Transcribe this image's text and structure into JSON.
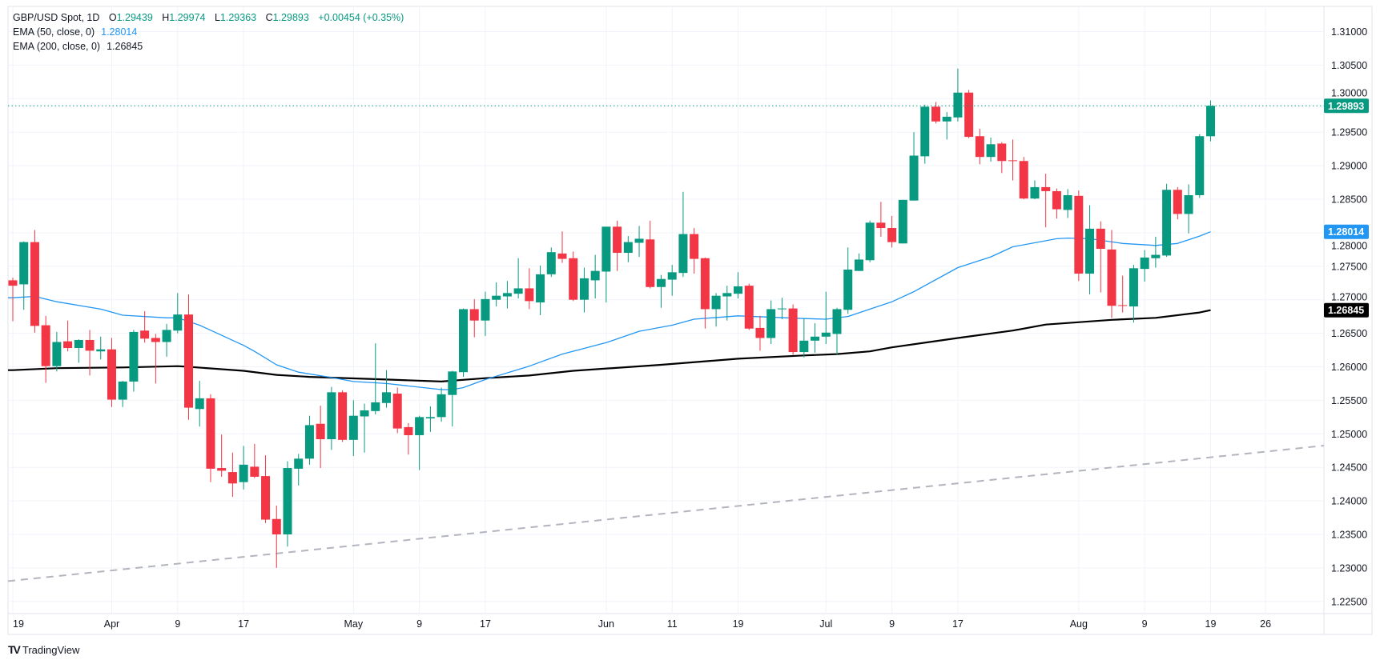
{
  "legend": {
    "symbol": "GBP/USD Spot, 1D",
    "open_label": "O",
    "open": "1.29439",
    "high_label": "H",
    "high": "1.29974",
    "low_label": "L",
    "low": "1.29363",
    "close_label": "C",
    "close": "1.29893",
    "change": "+0.00454 (+0.35%)",
    "ema50_label": "EMA (50, close, 0)",
    "ema50_value": "1.28014",
    "ema200_label": "EMA (200, close, 0)",
    "ema200_value": "1.26845"
  },
  "branding": {
    "logo_text": "TradingView"
  },
  "colors": {
    "up": "#089981",
    "down": "#f23645",
    "ema50": "#2196f3",
    "ema200": "#000000",
    "trendline": "#b2b5be",
    "grid": "#f0f3fa"
  },
  "chart_data": {
    "type": "candlestick",
    "title": "GBP/USD Spot, 1D",
    "ylim": [
      1.2215,
      1.3125
    ],
    "grid": true,
    "y_ticks": [
      "1.31000",
      "1.30500",
      "1.30000",
      "1.29500",
      "1.29000",
      "1.28500",
      "1.28000",
      "1.27500",
      "1.27000",
      "1.26500",
      "1.26000",
      "1.25500",
      "1.25000",
      "1.24500",
      "1.24000",
      "1.23500",
      "1.23000",
      "1.22500"
    ],
    "x_ticks": [
      {
        "label": "19",
        "date": "Mar 19"
      },
      {
        "label": "Apr",
        "date": "Apr 1"
      },
      {
        "label": "9",
        "date": "Apr 9"
      },
      {
        "label": "17",
        "date": "Apr 17"
      },
      {
        "label": "May",
        "date": "May 1"
      },
      {
        "label": "9",
        "date": "May 9"
      },
      {
        "label": "17",
        "date": "May 17"
      },
      {
        "label": "Jun",
        "date": "Jun 3"
      },
      {
        "label": "11",
        "date": "Jun 11"
      },
      {
        "label": "19",
        "date": "Jun 19"
      },
      {
        "label": "Jul",
        "date": "Jul 1"
      },
      {
        "label": "9",
        "date": "Jul 9"
      },
      {
        "label": "17",
        "date": "Jul 17"
      },
      {
        "label": "Aug",
        "date": "Aug 1"
      },
      {
        "label": "9",
        "date": "Aug 9"
      },
      {
        "label": "19",
        "date": "Aug 19"
      },
      {
        "label": "26",
        "date": "Aug 26"
      }
    ],
    "candles_fields": [
      "date",
      "open",
      "high",
      "low",
      "close"
    ],
    "candles": [
      [
        "Mar 19",
        1.2729,
        1.2733,
        1.2668,
        1.2721
      ],
      [
        "Mar 20",
        1.2723,
        1.2787,
        1.2685,
        1.2786
      ],
      [
        "Mar 21",
        1.2786,
        1.2804,
        1.2651,
        1.2661
      ],
      [
        "Mar 22",
        1.2662,
        1.2676,
        1.2576,
        1.2601
      ],
      [
        "Mar 25",
        1.2601,
        1.2652,
        1.2593,
        1.2637
      ],
      [
        "Mar 26",
        1.2638,
        1.2669,
        1.2623,
        1.2628
      ],
      [
        "Mar 27",
        1.2628,
        1.2641,
        1.2606,
        1.264
      ],
      [
        "Mar 28",
        1.264,
        1.2655,
        1.2587,
        1.2624
      ],
      [
        "Mar 29",
        1.2623,
        1.2645,
        1.2611,
        1.2626
      ],
      [
        "Apr 1",
        1.2626,
        1.2643,
        1.254,
        1.2551
      ],
      [
        "Apr 2",
        1.2551,
        1.2579,
        1.254,
        1.2578
      ],
      [
        "Apr 3",
        1.2578,
        1.2655,
        1.2563,
        1.2652
      ],
      [
        "Apr 4",
        1.2654,
        1.2683,
        1.2636,
        1.2642
      ],
      [
        "Apr 5",
        1.2643,
        1.2649,
        1.2575,
        1.2637
      ],
      [
        "Apr 8",
        1.2637,
        1.2664,
        1.2615,
        1.2655
      ],
      [
        "Apr 9",
        1.2654,
        1.271,
        1.265,
        1.2678
      ],
      [
        "Apr 10",
        1.2678,
        1.2708,
        1.2521,
        1.2539
      ],
      [
        "Apr 11",
        1.2537,
        1.2579,
        1.2511,
        1.2553
      ],
      [
        "Apr 12",
        1.2553,
        1.2559,
        1.2428,
        1.2448
      ],
      [
        "Apr 15",
        1.2449,
        1.2499,
        1.2436,
        1.2445
      ],
      [
        "Apr 16",
        1.2443,
        1.2472,
        1.2406,
        1.2426
      ],
      [
        "Apr 17",
        1.2428,
        1.2482,
        1.2417,
        1.2454
      ],
      [
        "Apr 18",
        1.2451,
        1.2485,
        1.2434,
        1.2436
      ],
      [
        "Apr 19",
        1.2437,
        1.2468,
        1.2367,
        1.2372
      ],
      [
        "Apr 22",
        1.2373,
        1.2393,
        1.23,
        1.235
      ],
      [
        "Apr 23",
        1.235,
        1.2459,
        1.2332,
        1.2449
      ],
      [
        "Apr 24",
        1.2448,
        1.247,
        1.2423,
        1.2463
      ],
      [
        "Apr 25",
        1.2463,
        1.2527,
        1.2454,
        1.2513
      ],
      [
        "Apr 26",
        1.2515,
        1.2542,
        1.2449,
        1.2492
      ],
      [
        "Apr 29",
        1.2492,
        1.257,
        1.2476,
        1.2562
      ],
      [
        "Apr 30",
        1.2562,
        1.2565,
        1.2488,
        1.2491
      ],
      [
        "May 1",
        1.2491,
        1.255,
        1.2467,
        1.2527
      ],
      [
        "May 2",
        1.2526,
        1.2545,
        1.2472,
        1.2535
      ],
      [
        "May 3",
        1.2534,
        1.2635,
        1.2529,
        1.2547
      ],
      [
        "May 6",
        1.2546,
        1.2595,
        1.2539,
        1.2562
      ],
      [
        "May 7",
        1.256,
        1.2569,
        1.2501,
        1.2508
      ],
      [
        "May 8",
        1.251,
        1.2516,
        1.2469,
        1.2498
      ],
      [
        "May 9",
        1.2498,
        1.2527,
        1.2446,
        1.2525
      ],
      [
        "May 10",
        1.2523,
        1.2541,
        1.2503,
        1.2525
      ],
      [
        "May 13",
        1.2525,
        1.2569,
        1.2518,
        1.2559
      ],
      [
        "May 14",
        1.2558,
        1.2594,
        1.2511,
        1.2593
      ],
      [
        "May 15",
        1.2592,
        1.2687,
        1.2585,
        1.2686
      ],
      [
        "May 16",
        1.2686,
        1.2701,
        1.2644,
        1.2669
      ],
      [
        "May 17",
        1.2669,
        1.2712,
        1.2646,
        1.2701
      ],
      [
        "May 20",
        1.27,
        1.2726,
        1.269,
        1.2706
      ],
      [
        "May 21",
        1.2705,
        1.2728,
        1.2687,
        1.271
      ],
      [
        "May 22",
        1.2709,
        1.2762,
        1.2702,
        1.2717
      ],
      [
        "May 23",
        1.2717,
        1.2747,
        1.2686,
        1.2698
      ],
      [
        "May 24",
        1.2696,
        1.2751,
        1.2677,
        1.2738
      ],
      [
        "May 27",
        1.2738,
        1.2778,
        1.2734,
        1.2771
      ],
      [
        "May 28",
        1.2769,
        1.2802,
        1.2755,
        1.2761
      ],
      [
        "May 29",
        1.2762,
        1.2772,
        1.2698,
        1.27
      ],
      [
        "May 30",
        1.27,
        1.2748,
        1.2681,
        1.2732
      ],
      [
        "May 31",
        1.2729,
        1.2767,
        1.2702,
        1.2743
      ],
      [
        "Jun 3",
        1.2742,
        1.2809,
        1.2696,
        1.2809
      ],
      [
        "Jun 4",
        1.2809,
        1.2818,
        1.2743,
        1.277
      ],
      [
        "Jun 5",
        1.277,
        1.2795,
        1.2756,
        1.2786
      ],
      [
        "Jun 6",
        1.2785,
        1.281,
        1.2764,
        1.2791
      ],
      [
        "Jun 7",
        1.279,
        1.2818,
        1.2717,
        1.2719
      ],
      [
        "Jun 10",
        1.2719,
        1.2737,
        1.2688,
        1.2731
      ],
      [
        "Jun 11",
        1.273,
        1.2752,
        1.2706,
        1.2741
      ],
      [
        "Jun 12",
        1.274,
        1.2861,
        1.2734,
        1.2798
      ],
      [
        "Jun 13",
        1.2798,
        1.2807,
        1.2739,
        1.2761
      ],
      [
        "Jun 14",
        1.2762,
        1.2763,
        1.2657,
        1.2686
      ],
      [
        "Jun 17",
        1.2686,
        1.271,
        1.266,
        1.2706
      ],
      [
        "Jun 18",
        1.2705,
        1.2721,
        1.2669,
        1.271
      ],
      [
        "Jun 19",
        1.2709,
        1.2741,
        1.2702,
        1.272
      ],
      [
        "Jun 20",
        1.2721,
        1.2724,
        1.2655,
        1.2657
      ],
      [
        "Jun 21",
        1.2658,
        1.2676,
        1.2624,
        1.2643
      ],
      [
        "Jun 24",
        1.2643,
        1.2699,
        1.2634,
        1.2686
      ],
      [
        "Jun 25",
        1.2686,
        1.2703,
        1.2671,
        1.2687
      ],
      [
        "Jun 26",
        1.2687,
        1.2693,
        1.2618,
        1.2622
      ],
      [
        "Jun 27",
        1.2622,
        1.2672,
        1.2614,
        1.2639
      ],
      [
        "Jun 28",
        1.2639,
        1.2665,
        1.2621,
        1.2645
      ],
      [
        "Jul 1",
        1.2645,
        1.2712,
        1.2634,
        1.2651
      ],
      [
        "Jul 2",
        1.2649,
        1.2688,
        1.2618,
        1.2686
      ],
      [
        "Jul 3",
        1.2685,
        1.2778,
        1.2679,
        1.2745
      ],
      [
        "Jul 4",
        1.2743,
        1.2769,
        1.2743,
        1.276
      ],
      [
        "Jul 5",
        1.2759,
        1.2818,
        1.2756,
        1.2815
      ],
      [
        "Jul 8",
        1.2815,
        1.2846,
        1.2794,
        1.2807
      ],
      [
        "Jul 9",
        1.2807,
        1.2825,
        1.2778,
        1.2786
      ],
      [
        "Jul 10",
        1.2784,
        1.2849,
        1.2784,
        1.2849
      ],
      [
        "Jul 11",
        1.2848,
        1.295,
        1.2848,
        1.2915
      ],
      [
        "Jul 12",
        1.2914,
        1.2991,
        1.2903,
        1.2988
      ],
      [
        "Jul 15",
        1.2988,
        1.2995,
        1.2963,
        1.2966
      ],
      [
        "Jul 16",
        1.2966,
        1.298,
        1.2939,
        1.2973
      ],
      [
        "Jul 17",
        1.2972,
        1.3045,
        1.2966,
        1.3009
      ],
      [
        "Jul 18",
        1.3009,
        1.3013,
        1.2941,
        1.2943
      ],
      [
        "Jul 19",
        1.2944,
        1.2955,
        1.2902,
        1.2913
      ],
      [
        "Jul 22",
        1.2913,
        1.2942,
        1.2906,
        1.2932
      ],
      [
        "Jul 23",
        1.2933,
        1.2935,
        1.2889,
        1.2907
      ],
      [
        "Jul 24",
        1.2908,
        1.2939,
        1.2878,
        1.2907
      ],
      [
        "Jul 25",
        1.2907,
        1.2913,
        1.285,
        1.2851
      ],
      [
        "Jul 26",
        1.2851,
        1.2878,
        1.285,
        1.2868
      ],
      [
        "Jul 29",
        1.2868,
        1.2888,
        1.2808,
        1.2862
      ],
      [
        "Jul 30",
        1.2862,
        1.2866,
        1.2821,
        1.2835
      ],
      [
        "Jul 31",
        1.2834,
        1.2865,
        1.2822,
        1.2856
      ],
      [
        "Aug 1",
        1.2855,
        1.2863,
        1.2728,
        1.2739
      ],
      [
        "Aug 2",
        1.2739,
        1.2841,
        1.2708,
        1.2806
      ],
      [
        "Aug 5",
        1.2806,
        1.2817,
        1.2711,
        1.2776
      ],
      [
        "Aug 6",
        1.2775,
        1.2804,
        1.2673,
        1.2691
      ],
      [
        "Aug 7",
        1.2692,
        1.2736,
        1.2681,
        1.2691
      ],
      [
        "Aug 8",
        1.269,
        1.2752,
        1.2666,
        1.2747
      ],
      [
        "Aug 9",
        1.2746,
        1.2774,
        1.2727,
        1.2763
      ],
      [
        "Aug 12",
        1.2762,
        1.2794,
        1.2748,
        1.2767
      ],
      [
        "Aug 13",
        1.2766,
        1.2873,
        1.2764,
        1.2864
      ],
      [
        "Aug 14",
        1.2864,
        1.2868,
        1.282,
        1.2828
      ],
      [
        "Aug 15",
        1.2828,
        1.2872,
        1.2799,
        1.2856
      ],
      [
        "Aug 16",
        1.2856,
        1.2947,
        1.2852,
        1.2944
      ],
      [
        "Aug 19",
        1.29439,
        1.29974,
        1.29363,
        1.29893
      ]
    ],
    "ema50": [
      [
        "Mar 19",
        1.2703
      ],
      [
        "Mar 21",
        1.2705
      ],
      [
        "Mar 25",
        1.2697
      ],
      [
        "Mar 29",
        1.2686
      ],
      [
        "Apr 2",
        1.2677
      ],
      [
        "Apr 8",
        1.2673
      ],
      [
        "Apr 9",
        1.2673
      ],
      [
        "Apr 11",
        1.2662
      ],
      [
        "Apr 17",
        1.2632
      ],
      [
        "Apr 18",
        1.2623
      ],
      [
        "Apr 22",
        1.2603
      ],
      [
        "Apr 24",
        1.2592
      ],
      [
        "Apr 29",
        1.2584
      ],
      [
        "May 1",
        1.2578
      ],
      [
        "May 6",
        1.2575
      ],
      [
        "May 13",
        1.2566
      ],
      [
        "May 14",
        1.2566
      ],
      [
        "May 15",
        1.2569
      ],
      [
        "May 17",
        1.2581
      ],
      [
        "May 23",
        1.2601
      ],
      [
        "May 28",
        1.2619
      ],
      [
        "Jun 3",
        1.2636
      ],
      [
        "Jun 6",
        1.2653
      ],
      [
        "Jun 11",
        1.2662
      ],
      [
        "Jun 13",
        1.2671
      ],
      [
        "Jun 19",
        1.2676
      ],
      [
        "Jun 27",
        1.2672
      ],
      [
        "Jul 1",
        1.2671
      ],
      [
        "Jul 3",
        1.2675
      ],
      [
        "Jul 5",
        1.2686
      ],
      [
        "Jul 9",
        1.2697
      ],
      [
        "Jul 11",
        1.2712
      ],
      [
        "Jul 17",
        1.2748
      ],
      [
        "Jul 22",
        1.2764
      ],
      [
        "Jul 24",
        1.2779
      ],
      [
        "Jul 30",
        1.2791
      ],
      [
        "Jul 31",
        1.2792
      ],
      [
        "Aug 2",
        1.2791
      ],
      [
        "Aug 7",
        1.2784
      ],
      [
        "Aug 12",
        1.2781
      ],
      [
        "Aug 14",
        1.2784
      ],
      [
        "Aug 16",
        1.2795
      ],
      [
        "Aug 19",
        1.28014
      ]
    ],
    "ema200": [
      [
        "Mar 19",
        1.2595
      ],
      [
        "Mar 25",
        1.2598
      ],
      [
        "Apr 2",
        1.2599
      ],
      [
        "Apr 9",
        1.2601
      ],
      [
        "Apr 10",
        1.26
      ],
      [
        "Apr 17",
        1.2594
      ],
      [
        "Apr 22",
        1.2588
      ],
      [
        "Apr 25",
        1.2585
      ],
      [
        "May 6",
        1.2581
      ],
      [
        "May 13",
        1.2578
      ],
      [
        "May 17",
        1.2583
      ],
      [
        "May 23",
        1.2587
      ],
      [
        "May 29",
        1.2594
      ],
      [
        "Jun 10",
        1.2603
      ],
      [
        "Jun 19",
        1.2612
      ],
      [
        "Jun 27",
        1.2617
      ],
      [
        "Jul 2",
        1.2619
      ],
      [
        "Jul 5",
        1.2623
      ],
      [
        "Jul 9",
        1.2629
      ],
      [
        "Jul 17",
        1.2643
      ],
      [
        "Jul 24",
        1.2654
      ],
      [
        "Jul 29",
        1.2663
      ],
      [
        "Aug 6",
        1.267
      ],
      [
        "Aug 12",
        1.2673
      ],
      [
        "Aug 16",
        1.2681
      ],
      [
        "Aug 19",
        1.26845
      ]
    ],
    "trendline": {
      "style": "dashed",
      "points": [
        [
          "Mar 19",
          1.2281
        ],
        [
          "Aug 19",
          1.2465
        ]
      ],
      "extends": "right"
    },
    "last_price_line": {
      "value": 1.29893,
      "style": "dotted"
    },
    "price_labels": [
      {
        "text": "1.29893",
        "value": 1.29893,
        "color": "#089981"
      },
      {
        "text": "1.28014",
        "value": 1.28014,
        "color": "#2196f3"
      },
      {
        "text": "1.26845",
        "value": 1.26845,
        "color": "#000000"
      }
    ]
  }
}
